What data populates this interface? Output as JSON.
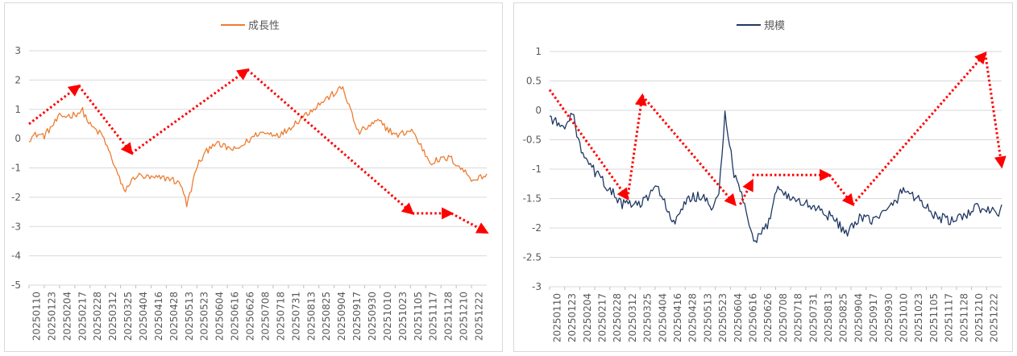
{
  "chart_data": [
    {
      "type": "line",
      "title": "",
      "legend": [
        "成長性"
      ],
      "legend_position": "top",
      "series": [
        {
          "name": "成長性",
          "color": "#ED7D31"
        }
      ],
      "ylim": [
        -5,
        3
      ],
      "yticks": [
        -5,
        -4,
        -3,
        -2,
        -1,
        0,
        1,
        2,
        3
      ],
      "x_tick_labels": [
        "20250110",
        "20250123",
        "20250204",
        "20250217",
        "20250228",
        "20250312",
        "20250325",
        "20250404",
        "20250416",
        "20250428",
        "20250513",
        "20250523",
        "20250604",
        "20250616",
        "20250626",
        "20250708",
        "20250718",
        "20250731",
        "20250813",
        "20250825",
        "20250904",
        "20250917",
        "20250930",
        "20251010",
        "20251023",
        "20251105",
        "20251117",
        "20251128",
        "20251210",
        "20251222"
      ],
      "trend_arrows": [
        {
          "from": [
            0,
            0.5
          ],
          "to": [
            55,
            1.8
          ]
        },
        {
          "from": [
            55,
            1.8
          ],
          "to": [
            113,
            -0.5
          ]
        },
        {
          "from": [
            113,
            -0.5
          ],
          "to": [
            241,
            2.35
          ]
        },
        {
          "from": [
            241,
            2.35
          ],
          "to": [
            423,
            -2.55
          ]
        },
        {
          "from": [
            423,
            -2.55
          ],
          "to": [
            466,
            -2.55
          ]
        },
        {
          "from": [
            466,
            -2.55
          ],
          "to": [
            505,
            -3.2
          ]
        }
      ]
    },
    {
      "type": "line",
      "title": "",
      "legend": [
        "規模"
      ],
      "legend_position": "top",
      "series": [
        {
          "name": "規模",
          "color": "#203864"
        }
      ],
      "ylim": [
        -3,
        1
      ],
      "yticks": [
        -3,
        -2.5,
        -2,
        -1.5,
        -1,
        -0.5,
        0,
        0.5,
        1
      ],
      "x_tick_labels": [
        "20250110",
        "20250123",
        "20250204",
        "20250217",
        "20250228",
        "20250312",
        "20250325",
        "20250404",
        "20250416",
        "20250428",
        "20250513",
        "20250523",
        "20250604",
        "20250616",
        "20250626",
        "20250708",
        "20250718",
        "20250731",
        "20250813",
        "20250825",
        "20250904",
        "20250917",
        "20250930",
        "20251010",
        "20251023",
        "20251105",
        "20251117",
        "20251128",
        "20251210",
        "20251222"
      ],
      "trend_arrows": [
        {
          "from": [
            0,
            0.35
          ],
          "to": [
            90,
            -1.5
          ]
        },
        {
          "from": [
            90,
            -1.5
          ],
          "to": [
            107,
            0.25
          ]
        },
        {
          "from": [
            107,
            0.25
          ],
          "to": [
            214,
            -1.6
          ]
        },
        {
          "from": [
            220,
            -1.6
          ],
          "to": [
            234,
            -1.2
          ]
        },
        {
          "from": [
            234,
            -1.1
          ],
          "to": [
            323,
            -1.1
          ]
        },
        {
          "from": [
            323,
            -1.1
          ],
          "to": [
            350,
            -1.6
          ]
        },
        {
          "from": [
            350,
            -1.6
          ],
          "to": [
            503,
            0.97
          ]
        },
        {
          "from": [
            503,
            0.97
          ],
          "to": [
            522,
            -0.95
          ]
        }
      ]
    }
  ]
}
